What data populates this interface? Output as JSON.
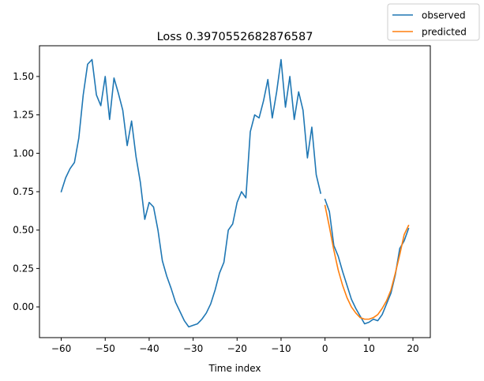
{
  "chart_data": {
    "type": "line",
    "title": "Loss 0.3970552682876587",
    "xlabel": "Time index",
    "ylabel": "",
    "xlim": [
      -64.95,
      23.95
    ],
    "ylim": [
      -0.2,
      1.7
    ],
    "xticks": [
      -60,
      -50,
      -40,
      -30,
      -20,
      -10,
      0,
      10,
      20
    ],
    "yticks": [
      0.0,
      0.25,
      0.5,
      0.75,
      1.0,
      1.25,
      1.5
    ],
    "xtick_labels": [
      "−60",
      "−50",
      "−40",
      "−30",
      "−20",
      "−10",
      "0",
      "10",
      "20"
    ],
    "ytick_labels": [
      "0.00",
      "0.25",
      "0.50",
      "0.75",
      "1.00",
      "1.25",
      "1.50"
    ],
    "grid": false,
    "legend_position": "top-right outside",
    "series": [
      {
        "name": "observed",
        "color": "#1f77b4",
        "segments": [
          {
            "x": [
              -60,
              -59,
              -58,
              -57,
              -56,
              -55,
              -54,
              -53,
              -52,
              -51,
              -50,
              -49,
              -48,
              -47,
              -46,
              -45,
              -44,
              -43,
              -42,
              -41,
              -40,
              -39,
              -38,
              -37,
              -36,
              -35,
              -34,
              -33,
              -32,
              -31,
              -30,
              -29,
              -28,
              -27,
              -26,
              -25,
              -24,
              -23,
              -22,
              -21,
              -20,
              -19,
              -18,
              -17,
              -16,
              -15,
              -14,
              -13,
              -12,
              -11,
              -10,
              -9,
              -8,
              -7,
              -6,
              -5,
              -4,
              -3,
              -2,
              -1
            ],
            "y": [
              0.75,
              0.84,
              0.9,
              0.94,
              1.1,
              1.38,
              1.58,
              1.61,
              1.38,
              1.31,
              1.5,
              1.22,
              1.49,
              1.39,
              1.28,
              1.05,
              1.21,
              0.98,
              0.81,
              0.57,
              0.68,
              0.65,
              0.5,
              0.3,
              0.2,
              0.12,
              0.03,
              -0.03,
              -0.09,
              -0.13,
              -0.12,
              -0.11,
              -0.08,
              -0.04,
              0.02,
              0.11,
              0.22,
              0.29,
              0.5,
              0.54,
              0.68,
              0.75,
              0.71,
              1.14,
              1.25,
              1.23,
              1.34,
              1.48,
              1.23,
              1.4,
              1.61,
              1.3,
              1.5,
              1.22,
              1.4,
              1.28,
              0.97,
              1.17,
              0.86,
              0.74
            ]
          },
          {
            "x": [
              0,
              1,
              2,
              3,
              4,
              5,
              6,
              7,
              8,
              9,
              10,
              11,
              12,
              13,
              14,
              15,
              16,
              17,
              18,
              19
            ],
            "y": [
              0.7,
              0.62,
              0.4,
              0.33,
              0.23,
              0.14,
              0.05,
              -0.01,
              -0.06,
              -0.11,
              -0.1,
              -0.08,
              -0.09,
              -0.05,
              0.02,
              0.09,
              0.21,
              0.38,
              0.43,
              0.51
            ]
          }
        ]
      },
      {
        "name": "predicted",
        "color": "#ff7f0e",
        "segments": [
          {
            "x": [
              0,
              1,
              2,
              3,
              4,
              5,
              6,
              7,
              8,
              9,
              10,
              11,
              12,
              13,
              14,
              15,
              16,
              17,
              18,
              19
            ],
            "y": [
              0.66,
              0.52,
              0.37,
              0.24,
              0.14,
              0.06,
              0.0,
              -0.04,
              -0.07,
              -0.08,
              -0.08,
              -0.07,
              -0.05,
              -0.01,
              0.04,
              0.11,
              0.22,
              0.34,
              0.47,
              0.53
            ]
          }
        ]
      }
    ]
  }
}
